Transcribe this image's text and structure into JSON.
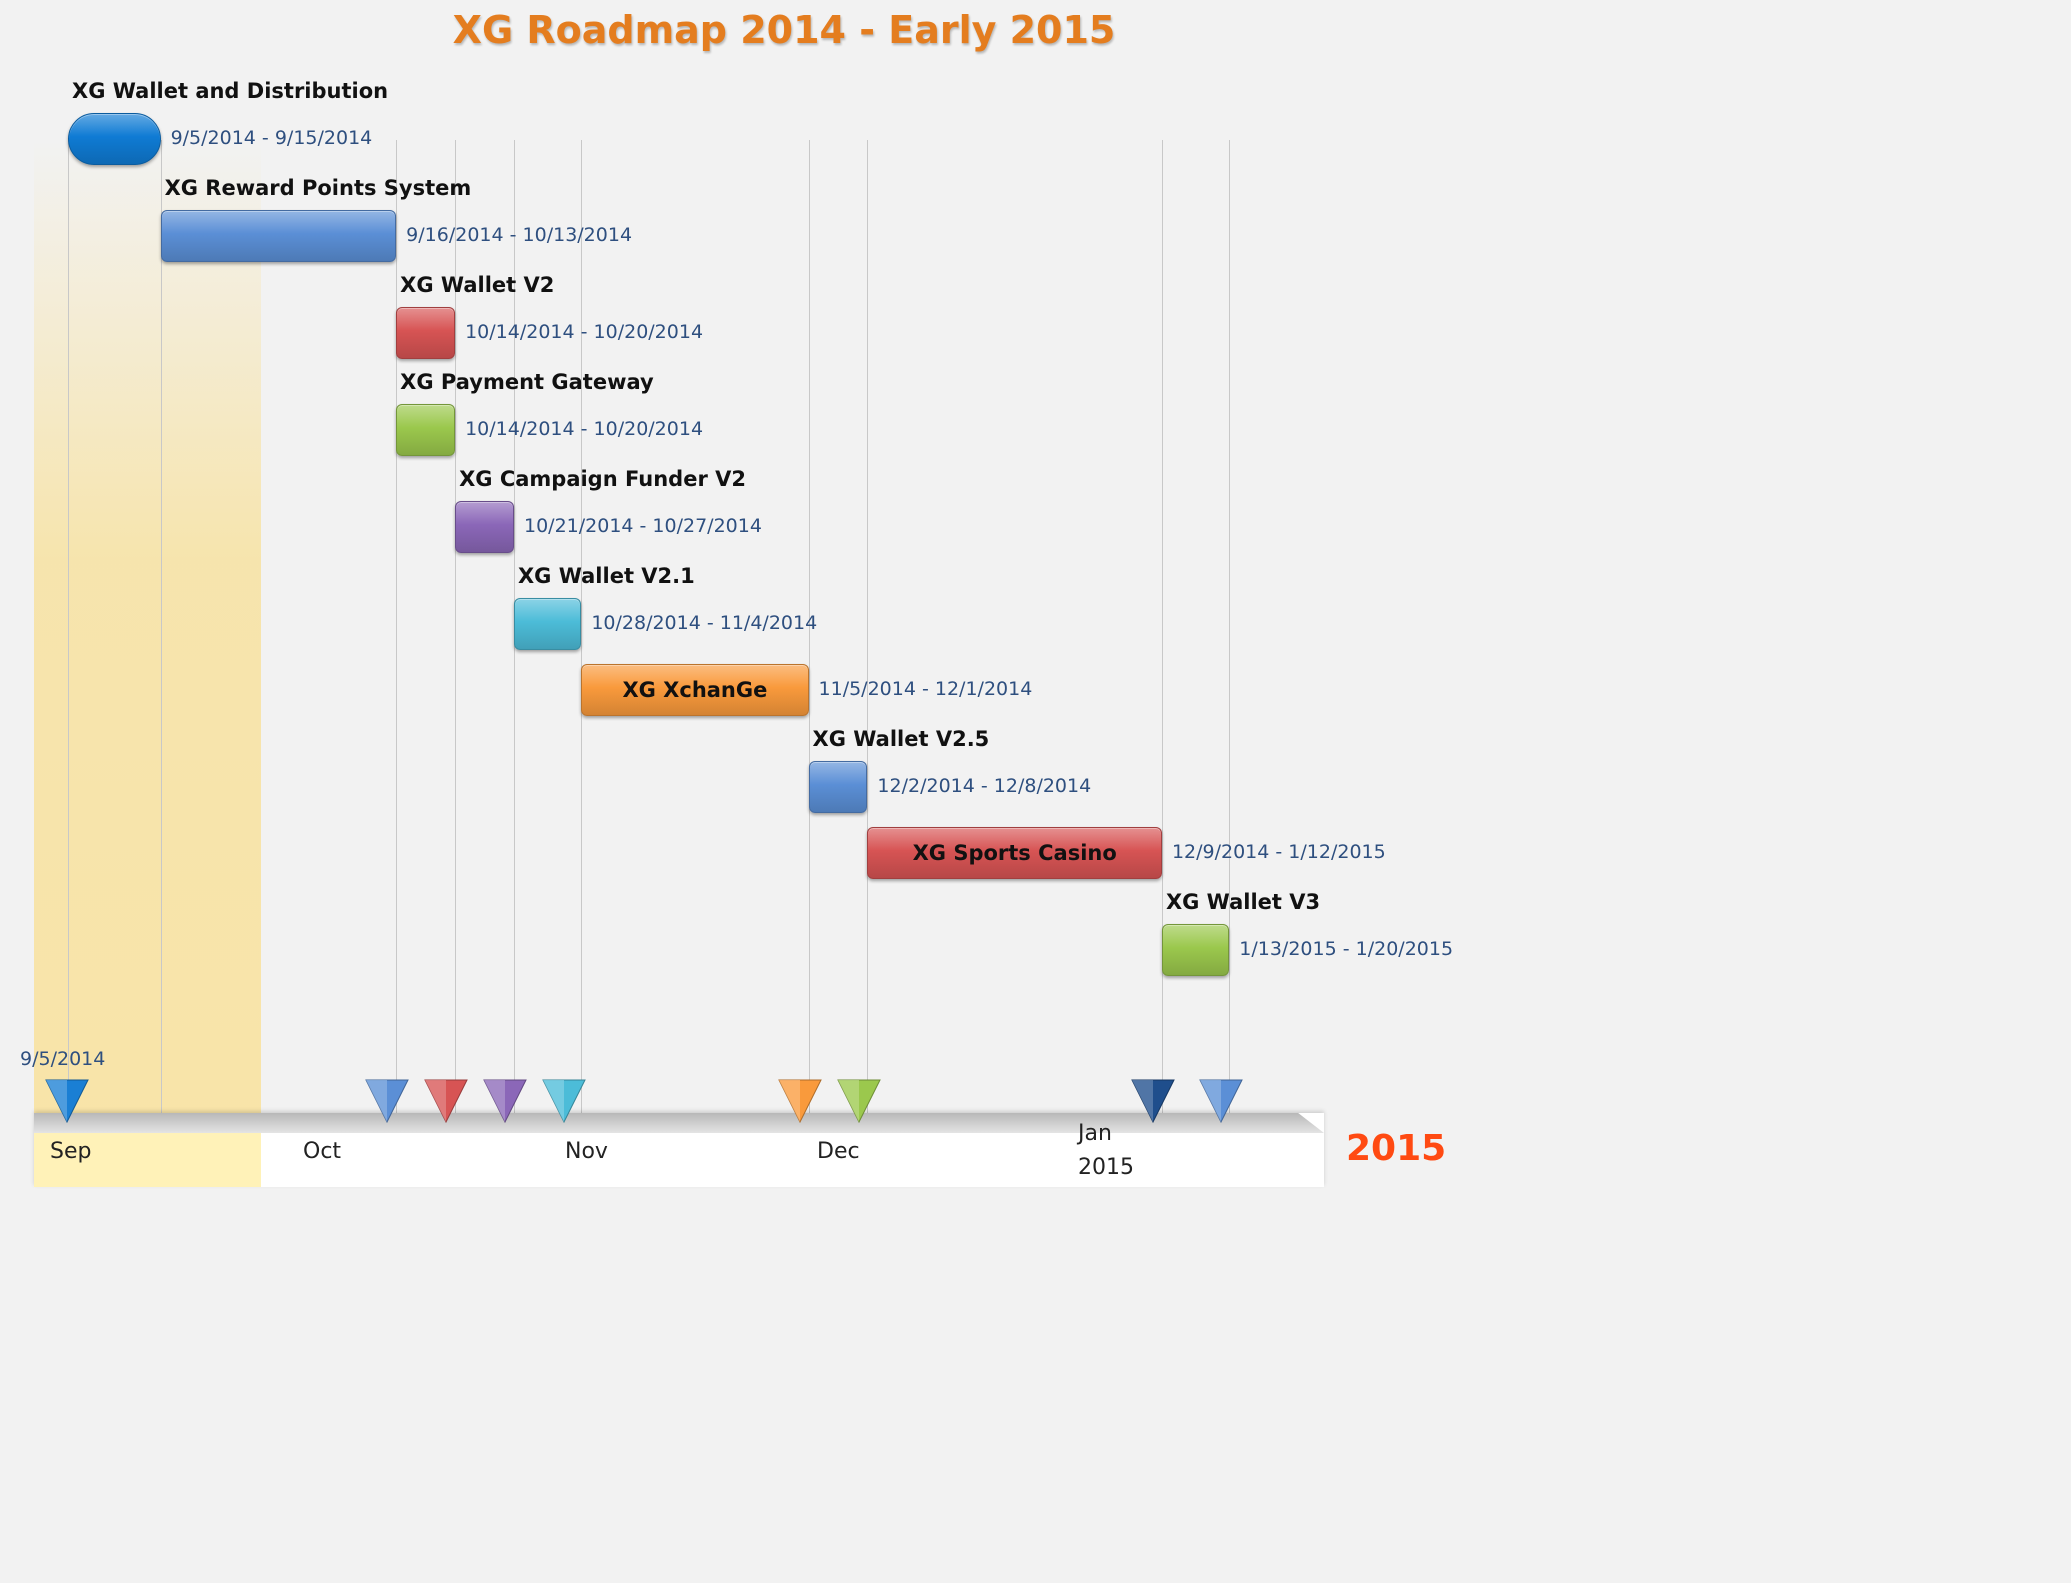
{
  "title": "XG Roadmap 2014 - Early 2015",
  "year_label": "2015",
  "start_label": "9/5/2014",
  "chart_data": {
    "type": "gantt",
    "title": "XG Roadmap 2014 - Early 2015",
    "tasks": [
      {
        "name": "XG Wallet and Distribution",
        "start": "9/5/2014",
        "end": "9/15/2014",
        "dates": "9/5/2014  - 9/15/2014",
        "color": "#0f7bd4"
      },
      {
        "name": "XG Reward Points System",
        "start": "9/16/2014",
        "end": "10/13/2014",
        "dates": "9/16/2014  - 10/13/2014",
        "color": "#5b8fd6"
      },
      {
        "name": "XG Wallet V2",
        "start": "10/14/2014",
        "end": "10/20/2014",
        "dates": "10/14/2014  - 10/20/2014",
        "color": "#d75454"
      },
      {
        "name": "XG Payment Gateway",
        "start": "10/14/2014",
        "end": "10/20/2014",
        "dates": "10/14/2014  - 10/20/2014",
        "color": "#9bc84d"
      },
      {
        "name": "XG Campaign Funder V2",
        "start": "10/21/2014",
        "end": "10/27/2014",
        "dates": "10/21/2014  - 10/27/2014",
        "color": "#8b67b8"
      },
      {
        "name": "XG Wallet V2.1",
        "start": "10/28/2014",
        "end": "11/4/2014",
        "dates": "10/28/2014  - 11/4/2014",
        "color": "#4cbcd8"
      },
      {
        "name": "XG XchanGe",
        "start": "11/5/2014",
        "end": "12/1/2014",
        "dates": "11/5/2014  - 12/1/2014",
        "color": "#f99a3c"
      },
      {
        "name": "XG Wallet V2.5",
        "start": "12/2/2014",
        "end": "12/8/2014",
        "dates": "12/2/2014  - 12/8/2014",
        "color": "#5b8fd6"
      },
      {
        "name": "XG Sports Casino",
        "start": "12/9/2014",
        "end": "1/12/2015",
        "dates": "12/9/2014  - 1/12/2015",
        "color": "#d75454"
      },
      {
        "name": "XG Wallet V3",
        "start": "1/13/2015",
        "end": "1/20/2015",
        "dates": "1/13/2015  - 1/20/2015",
        "color": "#9bc84d"
      }
    ],
    "axis_months": [
      "Sep",
      "Oct",
      "Nov",
      "Dec",
      "Jan\n2015"
    ],
    "milestone_colors": [
      "#1a7fd4",
      "#5b8fd6",
      "#d75454",
      "#8b67b8",
      "#4cbcd8",
      "#f99a3c",
      "#9bc84d",
      "#1f4e8c",
      "#5b8fd6"
    ]
  }
}
